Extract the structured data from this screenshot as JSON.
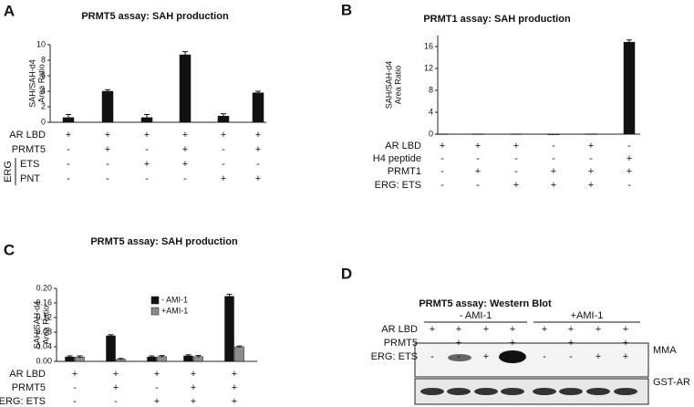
{
  "chart_data": [
    {
      "type": "bar",
      "panel": "A",
      "title": "PRMT5 assay: SAH production",
      "ylabel": [
        "SAH/SAH-d4",
        "Area Ratio"
      ],
      "values": [
        0.6,
        4.0,
        0.6,
        8.7,
        0.8,
        3.8
      ],
      "errors": [
        0.4,
        0.2,
        0.4,
        0.4,
        0.3,
        0.2
      ],
      "color": "#111111",
      "ylim": [
        0,
        10
      ],
      "yticks": [
        0,
        2,
        4,
        6,
        8,
        10
      ],
      "row_group_label": "ERG",
      "conditions": [
        {
          "label": "AR LBD",
          "values": [
            "+",
            "+",
            "+",
            "+",
            "+",
            "+"
          ]
        },
        {
          "label": "PRMT5",
          "values": [
            "-",
            "+",
            "-",
            "+",
            "-",
            "+"
          ]
        },
        {
          "label": "ETS",
          "values": [
            "-",
            "-",
            "+",
            "+",
            "-",
            "-"
          ]
        },
        {
          "label": "PNT",
          "values": [
            "-",
            "-",
            "-",
            "-",
            "+",
            "+"
          ]
        }
      ]
    },
    {
      "type": "bar",
      "panel": "B",
      "title": "PRMT1 assay: SAH production",
      "ylabel": [
        "SAH/SAH-d4",
        "Area Ratio"
      ],
      "values": [
        0.05,
        0.05,
        0.05,
        0,
        0.05,
        16.8
      ],
      "errors": [
        0,
        0,
        0,
        0,
        0,
        0.4
      ],
      "color": "#111111",
      "ylim": [
        0,
        18
      ],
      "yticks": [
        0,
        4,
        8,
        12,
        16
      ],
      "conditions": [
        {
          "label": "AR LBD",
          "values": [
            "+",
            "+",
            "+",
            "-",
            "+",
            "-"
          ]
        },
        {
          "label": "H4 peptide",
          "values": [
            "-",
            "-",
            "-",
            "-",
            "-",
            "+"
          ]
        },
        {
          "label": "PRMT1",
          "values": [
            "-",
            "+",
            "-",
            "+",
            "+",
            "+"
          ]
        },
        {
          "label": "ERG: ETS",
          "values": [
            "-",
            "-",
            "+",
            "+",
            "+",
            "-"
          ]
        }
      ]
    },
    {
      "type": "grouped_bar",
      "panel": "C",
      "title": "PRMT5 assay: SAH production",
      "ylabel": [
        "SAH/SAH-d4",
        "Area Ratio"
      ],
      "series": [
        {
          "name": "- AMI-1",
          "color": "#111111",
          "values": [
            0.012,
            0.07,
            0.012,
            0.015,
            0.178
          ],
          "errors": [
            0.003,
            0.003,
            0.003,
            0.003,
            0.006
          ]
        },
        {
          "name": "+AMI-1",
          "color": "#8c8c8c",
          "values": [
            0.012,
            0.006,
            0.013,
            0.013,
            0.04
          ],
          "errors": [
            0.003,
            0.002,
            0.003,
            0.003,
            0.002
          ]
        }
      ],
      "ylim": [
        0,
        0.2
      ],
      "yticks": [
        {
          "value": 0,
          "label": "0.00"
        },
        0.04,
        0.08,
        0.12,
        0.16,
        {
          "value": 0.2,
          "label": "0.20"
        }
      ],
      "conditions": [
        {
          "label": "AR LBD",
          "values": [
            "+",
            "+",
            "+",
            "+",
            "+"
          ]
        },
        {
          "label": "PRMT5",
          "values": [
            "-",
            "+",
            "-",
            "+",
            "+"
          ]
        },
        {
          "label": "ERG: ETS",
          "values": [
            "-",
            "-",
            "+",
            "+",
            "+"
          ]
        }
      ]
    }
  ],
  "blot": {
    "panel": "D",
    "title": "PRMT5 assay: Western Blot",
    "groups": [
      "- AMI-1",
      "+AMI-1"
    ],
    "conditions": [
      {
        "label": "AR LBD",
        "values": [
          "+",
          "+",
          "+",
          "+",
          "+",
          "+",
          "+",
          "+"
        ]
      },
      {
        "label": "PRMT5",
        "values": [
          "-",
          "+",
          "-",
          "+",
          "-",
          "+",
          "-",
          "+"
        ]
      },
      {
        "label": "ERG: ETS",
        "values": [
          "-",
          "-",
          "+",
          "+",
          "-",
          "-",
          "+",
          "+"
        ]
      }
    ],
    "bands": [
      "MMA",
      "GST-AR"
    ]
  }
}
